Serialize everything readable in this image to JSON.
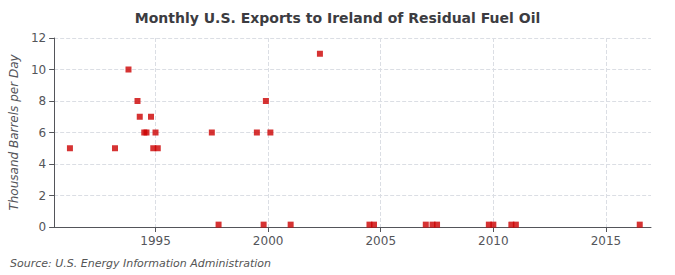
{
  "chart_data": {
    "type": "scatter",
    "title": "Monthly U.S. Exports to Ireland of Residual Fuel Oil",
    "ylabel": "Thousand Barrels per Day",
    "annotation": "Source: U.S. Energy Information Administration",
    "x": [
      1991.2,
      1993.2,
      1993.8,
      1994.2,
      1994.3,
      1994.5,
      1994.6,
      1994.8,
      1994.9,
      1995.0,
      1995.1,
      1997.5,
      1997.8,
      1999.5,
      1999.8,
      1999.9,
      2000.1,
      2001.0,
      2002.3,
      2004.5,
      2004.7,
      2007.0,
      2007.3,
      2007.5,
      2009.8,
      2010.0,
      2010.8,
      2011.0,
      2016.5
    ],
    "values": [
      5.0,
      5.0,
      10.0,
      8.0,
      7.0,
      6.0,
      6.0,
      7.0,
      5.0,
      6.0,
      5.0,
      6.0,
      0.15,
      6.0,
      0.15,
      8.0,
      6.0,
      0.15,
      11.0,
      0.15,
      0.15,
      0.15,
      0.15,
      0.15,
      0.15,
      0.15,
      0.15,
      0.15,
      0.15
    ],
    "color": "#cc0000",
    "marker": "square",
    "xlim": [
      1990.5,
      2017
    ],
    "xticks": [
      1995,
      2000,
      2005,
      2010,
      2015
    ],
    "ylim": [
      0,
      12
    ],
    "yticks": [
      0,
      2,
      4,
      6,
      8,
      10,
      12
    ],
    "grid": true
  }
}
